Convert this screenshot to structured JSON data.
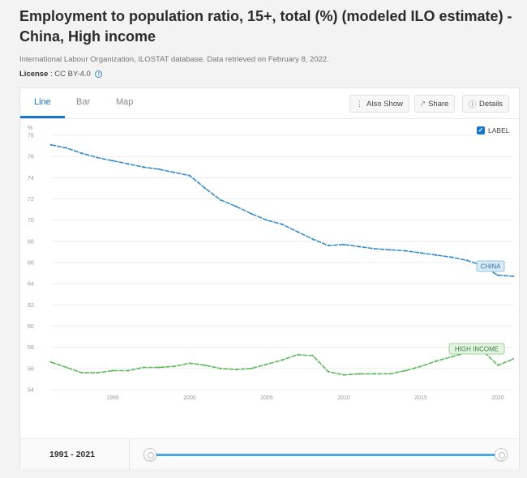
{
  "title": "Employment to population ratio, 15+, total (%) (modeled ILO estimate) - China, High income",
  "source": "International Labour Organization, ILOSTAT database. Data retrieved on February 8, 2022.",
  "license": {
    "label": "License",
    "value": ": CC BY-4.0"
  },
  "tabs": [
    "Line",
    "Bar",
    "Map"
  ],
  "active_tab": "Line",
  "toolbar": {
    "also_show": "Also Show",
    "share": "Share",
    "details": "Details"
  },
  "label_toggle": {
    "label": "LABEL",
    "checked": true
  },
  "range": {
    "label": "1991 - 2021"
  },
  "colors": {
    "china": "#3a8dc5",
    "high_income": "#5cb85c",
    "accent": "#1a74c8"
  },
  "chart_data": {
    "type": "line",
    "xlim": [
      1991,
      2021
    ],
    "ylim": [
      54,
      78
    ],
    "y_unit": "%",
    "x_ticks": [
      1995,
      2000,
      2005,
      2010,
      2015,
      2020
    ],
    "y_ticks": [
      54,
      56,
      58,
      60,
      62,
      64,
      66,
      68,
      70,
      72,
      74,
      76,
      78
    ],
    "grid": true,
    "series": [
      {
        "name": "CHINA",
        "x": [
          1991,
          1992,
          1993,
          1994,
          1995,
          1996,
          1997,
          1998,
          1999,
          2000,
          2001,
          2002,
          2003,
          2004,
          2005,
          2006,
          2007,
          2008,
          2009,
          2010,
          2011,
          2012,
          2013,
          2014,
          2015,
          2016,
          2017,
          2018,
          2019,
          2020,
          2021
        ],
        "values": [
          77.1,
          76.8,
          76.3,
          75.9,
          75.6,
          75.3,
          75.0,
          74.8,
          74.5,
          74.2,
          73.0,
          71.9,
          71.3,
          70.6,
          70.0,
          69.6,
          68.9,
          68.2,
          67.6,
          67.7,
          67.5,
          67.3,
          67.2,
          67.1,
          66.9,
          66.7,
          66.5,
          66.2,
          65.7,
          64.8,
          64.7
        ]
      },
      {
        "name": "HIGH INCOME",
        "x": [
          1991,
          1992,
          1993,
          1994,
          1995,
          1996,
          1997,
          1998,
          1999,
          2000,
          2001,
          2002,
          2003,
          2004,
          2005,
          2006,
          2007,
          2008,
          2009,
          2010,
          2011,
          2012,
          2013,
          2014,
          2015,
          2016,
          2017,
          2018,
          2019,
          2020,
          2021
        ],
        "values": [
          56.6,
          56.1,
          55.6,
          55.6,
          55.8,
          55.8,
          56.1,
          56.1,
          56.2,
          56.5,
          56.3,
          56.0,
          55.9,
          56.0,
          56.4,
          56.8,
          57.3,
          57.2,
          55.7,
          55.4,
          55.5,
          55.5,
          55.5,
          55.8,
          56.2,
          56.7,
          57.1,
          57.5,
          57.7,
          56.3,
          56.9
        ]
      }
    ]
  }
}
